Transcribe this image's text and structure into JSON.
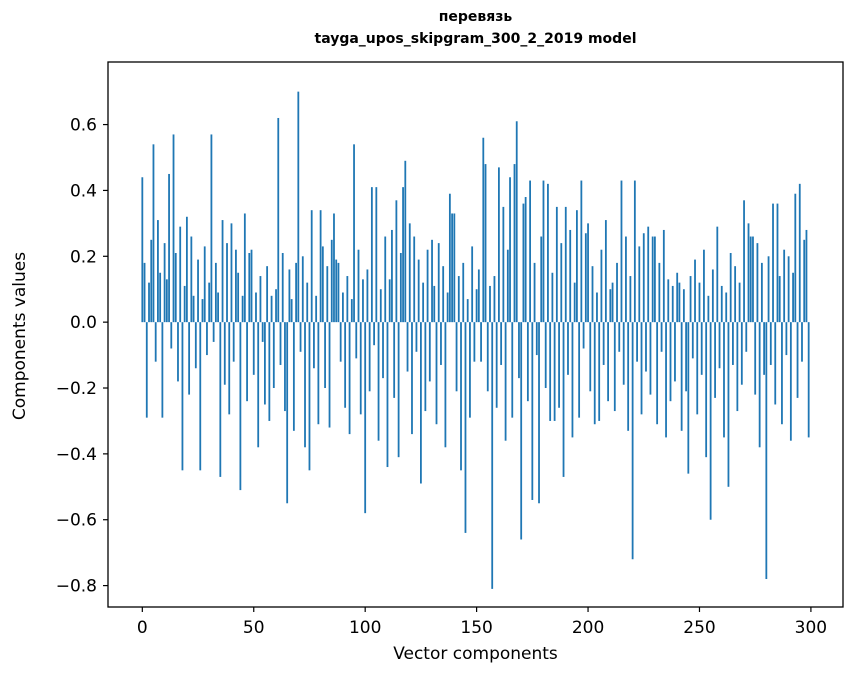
{
  "figure": {
    "title_line1": "перевязь",
    "title_line2": "tayga_upos_skipgram_300_2_2019 model",
    "xlabel": "Vector components",
    "ylabel": "Components values"
  },
  "chart_data": {
    "type": "bar",
    "title": "перевязь",
    "subtitle": "tayga_upos_skipgram_300_2_2019 model",
    "xlabel": "Vector components",
    "ylabel": "Components values",
    "bar_color": "#1f77b4",
    "grid": false,
    "legend": "none",
    "xlim": [
      -15.4,
      314.4
    ],
    "ylim": [
      -0.865,
      0.79
    ],
    "x_ticks": [
      0,
      50,
      100,
      150,
      200,
      250,
      300
    ],
    "y_ticks": [
      0.6,
      0.4,
      0.2,
      0.0,
      -0.2,
      -0.4,
      -0.6,
      -0.8
    ],
    "y_tick_labels": [
      "0.6",
      "0.4",
      "0.2",
      "0.0",
      "−0.2",
      "−0.4",
      "−0.6",
      "−0.8"
    ],
    "n_components": 300,
    "values": [
      0.44,
      0.18,
      -0.29,
      0.12,
      0.25,
      0.54,
      -0.12,
      0.31,
      0.15,
      -0.29,
      0.24,
      0.13,
      0.45,
      -0.08,
      0.57,
      0.21,
      -0.18,
      0.29,
      -0.45,
      0.11,
      0.32,
      -0.22,
      0.26,
      0.08,
      -0.14,
      0.19,
      -0.45,
      0.07,
      0.23,
      -0.1,
      0.12,
      0.57,
      -0.06,
      0.18,
      0.09,
      -0.47,
      0.31,
      -0.19,
      0.24,
      -0.28,
      0.3,
      -0.12,
      0.22,
      0.15,
      -0.51,
      0.08,
      0.33,
      -0.24,
      0.21,
      0.22,
      -0.16,
      0.09,
      -0.38,
      0.14,
      -0.06,
      -0.25,
      0.17,
      -0.3,
      0.08,
      -0.2,
      0.1,
      0.62,
      -0.13,
      0.21,
      -0.27,
      -0.55,
      0.16,
      0.07,
      -0.33,
      0.18,
      0.7,
      -0.09,
      0.2,
      -0.38,
      0.12,
      -0.45,
      0.34,
      -0.14,
      0.08,
      -0.31,
      0.34,
      0.23,
      -0.2,
      0.17,
      -0.32,
      0.25,
      0.33,
      0.19,
      0.18,
      -0.12,
      0.09,
      -0.26,
      0.14,
      -0.34,
      0.07,
      0.54,
      -0.11,
      0.22,
      -0.28,
      0.13,
      -0.58,
      0.16,
      -0.21,
      0.41,
      -0.07,
      0.41,
      -0.36,
      0.1,
      -0.17,
      0.26,
      -0.44,
      0.13,
      0.28,
      -0.23,
      0.37,
      -0.41,
      0.21,
      0.41,
      0.49,
      -0.15,
      0.3,
      -0.34,
      0.26,
      -0.09,
      0.19,
      -0.49,
      0.12,
      -0.27,
      0.22,
      -0.18,
      0.25,
      0.11,
      -0.31,
      0.24,
      -0.13,
      0.17,
      -0.38,
      0.09,
      0.39,
      0.33,
      0.33,
      -0.21,
      0.14,
      -0.45,
      0.18,
      -0.64,
      0.07,
      -0.29,
      0.23,
      -0.12,
      0.1,
      0.16,
      -0.12,
      0.56,
      0.48,
      -0.21,
      0.11,
      -0.81,
      0.14,
      -0.26,
      0.47,
      -0.13,
      0.35,
      -0.36,
      0.22,
      0.44,
      -0.29,
      0.48,
      0.61,
      -0.17,
      -0.66,
      0.36,
      0.38,
      -0.24,
      0.43,
      -0.54,
      0.18,
      -0.1,
      -0.55,
      0.26,
      0.43,
      -0.2,
      0.42,
      -0.3,
      0.15,
      -0.3,
      0.35,
      -0.26,
      0.24,
      -0.47,
      0.35,
      -0.16,
      0.28,
      -0.35,
      0.12,
      0.34,
      -0.29,
      0.43,
      -0.08,
      0.27,
      0.3,
      -0.21,
      0.17,
      -0.31,
      0.09,
      -0.3,
      0.22,
      -0.13,
      0.31,
      -0.24,
      0.1,
      0.12,
      -0.27,
      0.18,
      -0.09,
      0.43,
      -0.19,
      0.26,
      -0.33,
      0.14,
      -0.72,
      0.43,
      -0.12,
      0.23,
      -0.28,
      0.27,
      -0.15,
      0.29,
      -0.22,
      0.26,
      0.26,
      -0.31,
      0.18,
      -0.09,
      0.28,
      -0.35,
      0.13,
      -0.24,
      0.11,
      -0.18,
      0.15,
      0.12,
      -0.33,
      0.1,
      -0.21,
      -0.46,
      0.14,
      -0.11,
      0.19,
      -0.28,
      0.12,
      -0.16,
      0.22,
      -0.41,
      0.08,
      -0.6,
      0.16,
      -0.23,
      0.29,
      -0.14,
      0.11,
      -0.35,
      0.09,
      -0.5,
      0.21,
      -0.13,
      0.17,
      -0.27,
      0.12,
      -0.19,
      0.37,
      -0.09,
      0.3,
      0.26,
      0.26,
      -0.22,
      0.24,
      -0.38,
      0.18,
      -0.16,
      -0.78,
      0.2,
      -0.13,
      0.36,
      -0.25,
      0.36,
      0.14,
      -0.31,
      0.22,
      -0.1,
      0.2,
      -0.36,
      0.15,
      0.39,
      -0.23,
      0.42,
      -0.12,
      0.25,
      0.28,
      -0.35
    ]
  }
}
